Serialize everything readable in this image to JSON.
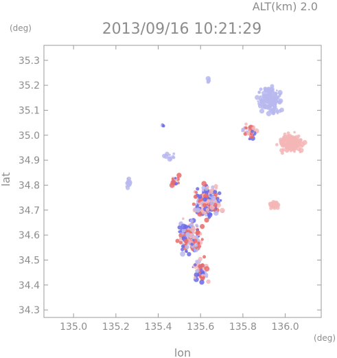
{
  "chart_data": {
    "type": "scatter",
    "description_free": true,
    "header_label": "ALT(km) 2.0",
    "title": "2013/09/16 10:21:29",
    "xlabel": "lon",
    "ylabel": "lat",
    "x_unit": "(deg)",
    "y_unit": "(deg)",
    "xlim": [
      134.86,
      136.17
    ],
    "ylim": [
      34.27,
      35.36
    ],
    "x_ticks": [
      "135.0",
      "135.2",
      "135.4",
      "135.6",
      "135.8",
      "136.0"
    ],
    "x_tick_values": [
      135.0,
      135.2,
      135.4,
      135.6,
      135.8,
      136.0
    ],
    "y_ticks": [
      "34.3",
      "34.4",
      "34.5",
      "34.6",
      "34.7",
      "34.8",
      "34.9",
      "35.0",
      "35.1",
      "35.2",
      "35.3"
    ],
    "y_tick_values": [
      34.3,
      34.4,
      34.5,
      34.6,
      34.7,
      34.8,
      34.9,
      35.0,
      35.1,
      35.2,
      35.3
    ],
    "grid": false,
    "colors": {
      "frame": "#9a9a9a",
      "text": "#8c8c8c",
      "positive": "#e86a6a",
      "negative": "#6a6ae8",
      "positive_light": "#f4b6b6",
      "negative_light": "#b9b9f0"
    },
    "clusters": [
      {
        "name_free": true,
        "lon": 135.93,
        "lat": 35.14,
        "spread_lon": 0.07,
        "spread_lat": 0.07,
        "count": 140,
        "sign": "negative",
        "tone": "light"
      },
      {
        "name_free": true,
        "lon": 136.03,
        "lat": 34.97,
        "spread_lon": 0.08,
        "spread_lat": 0.05,
        "count": 130,
        "sign": "positive",
        "tone": "light"
      },
      {
        "name_free": true,
        "lon": 135.84,
        "lat": 35.01,
        "spread_lon": 0.05,
        "spread_lat": 0.04,
        "count": 40,
        "sign": "mixed",
        "tone": "strong"
      },
      {
        "name_free": true,
        "lon": 135.63,
        "lat": 34.73,
        "spread_lon": 0.09,
        "spread_lat": 0.09,
        "count": 170,
        "sign": "mixed",
        "tone": "strong"
      },
      {
        "name_free": true,
        "lon": 135.55,
        "lat": 34.6,
        "spread_lon": 0.07,
        "spread_lat": 0.09,
        "count": 150,
        "sign": "mixed",
        "tone": "strong"
      },
      {
        "name_free": true,
        "lon": 135.6,
        "lat": 34.46,
        "spread_lon": 0.05,
        "spread_lat": 0.07,
        "count": 50,
        "sign": "mixed",
        "tone": "strong"
      },
      {
        "name_free": true,
        "lon": 135.95,
        "lat": 34.72,
        "spread_lon": 0.03,
        "spread_lat": 0.02,
        "count": 25,
        "sign": "positive",
        "tone": "light"
      },
      {
        "name_free": true,
        "lon": 135.48,
        "lat": 34.81,
        "spread_lon": 0.02,
        "spread_lat": 0.04,
        "count": 14,
        "sign": "mixed",
        "tone": "strong"
      },
      {
        "name_free": true,
        "lon": 135.26,
        "lat": 34.81,
        "spread_lon": 0.02,
        "spread_lat": 0.03,
        "count": 12,
        "sign": "negative",
        "tone": "light"
      },
      {
        "name_free": true,
        "lon": 135.45,
        "lat": 34.92,
        "spread_lon": 0.03,
        "spread_lat": 0.02,
        "count": 10,
        "sign": "negative",
        "tone": "light"
      },
      {
        "name_free": true,
        "lon": 135.64,
        "lat": 35.22,
        "spread_lon": 0.01,
        "spread_lat": 0.02,
        "count": 6,
        "sign": "negative",
        "tone": "light"
      },
      {
        "name_free": true,
        "lon": 135.42,
        "lat": 35.04,
        "spread_lon": 0.01,
        "spread_lat": 0.01,
        "count": 4,
        "sign": "negative",
        "tone": "strong"
      }
    ]
  }
}
